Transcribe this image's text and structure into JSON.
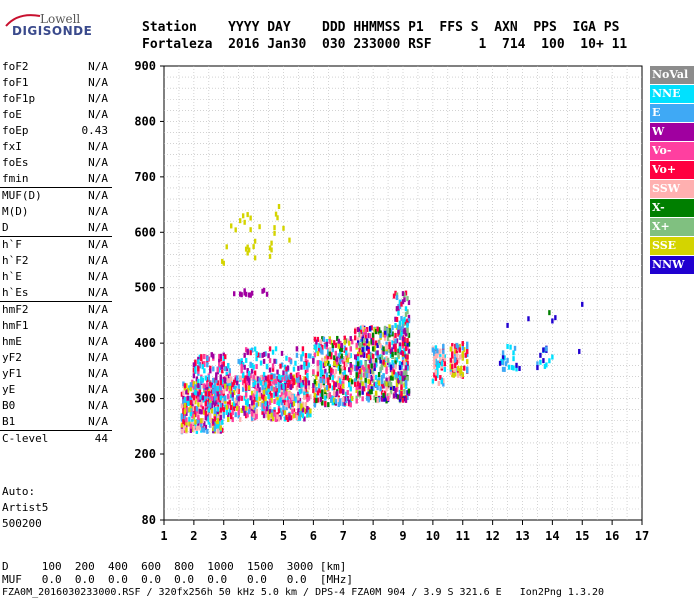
{
  "logo": {
    "line1": "Lowell",
    "line2": "DIGISONDE"
  },
  "header": {
    "line1": "Station    YYYY DAY    DDD HHMMSS P1  FFS S  AXN  PPS  IGA PS",
    "line2": "Fortaleza  2016 Jan30  030 233000 RSF      1  714  100  10+ 11"
  },
  "params": [
    {
      "name": "foF2",
      "value": "N/A"
    },
    {
      "name": "foF1",
      "value": "N/A"
    },
    {
      "name": "foF1p",
      "value": "N/A"
    },
    {
      "name": "foE",
      "value": "N/A"
    },
    {
      "name": "foEp",
      "value": "0.43"
    },
    {
      "name": "fxI",
      "value": "N/A"
    },
    {
      "name": "foEs",
      "value": "N/A"
    },
    {
      "name": "fmin",
      "value": "N/A"
    },
    {
      "name": "MUF(D)",
      "value": "N/A"
    },
    {
      "name": "M(D)",
      "value": "N/A"
    },
    {
      "name": "D",
      "value": "N/A"
    },
    {
      "name": "h`F",
      "value": "N/A"
    },
    {
      "name": "h`F2",
      "value": "N/A"
    },
    {
      "name": "h`E",
      "value": "N/A"
    },
    {
      "name": "h`Es",
      "value": "N/A"
    },
    {
      "name": "hmF2",
      "value": "N/A"
    },
    {
      "name": "hmF1",
      "value": "N/A"
    },
    {
      "name": "hmE",
      "value": "N/A"
    },
    {
      "name": "yF2",
      "value": "N/A"
    },
    {
      "name": "yF1",
      "value": "N/A"
    },
    {
      "name": "yE",
      "value": "N/A"
    },
    {
      "name": "B0",
      "value": "N/A"
    },
    {
      "name": "B1",
      "value": "N/A"
    },
    {
      "name": "C-level",
      "value": "44"
    }
  ],
  "auto": {
    "line1": "Auto:",
    "line2": "Artist5",
    "line3": "500200"
  },
  "legend": [
    {
      "label": "NoVal",
      "color": "#8c8c8c"
    },
    {
      "label": "NNE",
      "color": "#00e1ff"
    },
    {
      "label": "E",
      "color": "#3fa9f5"
    },
    {
      "label": "W",
      "color": "#a000a0"
    },
    {
      "label": "Vo-",
      "color": "#ff3fa0"
    },
    {
      "label": "Vo+",
      "color": "#ff0040"
    },
    {
      "label": "SSW",
      "color": "#ffb0b0"
    },
    {
      "label": "X-",
      "color": "#007f00"
    },
    {
      "label": "X+",
      "color": "#80c080"
    },
    {
      "label": "SSE",
      "color": "#d4d400"
    },
    {
      "label": "NNW",
      "color": "#2000d0"
    }
  ],
  "chart_data": {
    "type": "scatter",
    "x_ticks": [
      "1",
      "2",
      "3",
      "4",
      "5",
      "6",
      "7",
      "8",
      "9",
      "10",
      "11",
      "12",
      "13",
      "14",
      "15",
      "16",
      "17"
    ],
    "y_ticks": [
      "900",
      "800",
      "700",
      "600",
      "500",
      "400",
      "300",
      "200",
      "80"
    ],
    "xlim": [
      1,
      17
    ],
    "ylim": [
      80,
      900
    ],
    "grid": true,
    "legend_position": "right",
    "clusters": [
      {
        "x": [
          1.6,
          3.0
        ],
        "y": [
          240,
          330
        ],
        "series": [
          "SSW",
          "SSE",
          "Vo+",
          "E",
          "NNE",
          "Vo-",
          "W"
        ],
        "n": 380
      },
      {
        "x": [
          2.0,
          3.2
        ],
        "y": [
          300,
          380
        ],
        "series": [
          "Vo+",
          "W",
          "E",
          "Vo-",
          "NNE"
        ],
        "n": 160
      },
      {
        "x": [
          3.0,
          5.9
        ],
        "y": [
          262,
          340
        ],
        "series": [
          "SSW",
          "SSE",
          "E",
          "NNE",
          "Vo+",
          "W",
          "Vo-"
        ],
        "n": 520
      },
      {
        "x": [
          3.5,
          5.9
        ],
        "y": [
          320,
          390
        ],
        "series": [
          "Vo+",
          "W",
          "Vo-",
          "E",
          "NNE"
        ],
        "n": 140
      },
      {
        "x": [
          6.0,
          7.3
        ],
        "y": [
          288,
          410
        ],
        "series": [
          "SSE",
          "Vo+",
          "W",
          "E",
          "NNE",
          "SSW",
          "Vo-",
          "X-"
        ],
        "n": 320
      },
      {
        "x": [
          7.4,
          9.2
        ],
        "y": [
          295,
          430
        ],
        "series": [
          "SSE",
          "Vo+",
          "W",
          "E",
          "NNE",
          "SSW",
          "Vo-",
          "X+",
          "X-",
          "NNW"
        ],
        "n": 520
      },
      {
        "x": [
          8.7,
          9.2
        ],
        "y": [
          380,
          495
        ],
        "series": [
          "Vo+",
          "E",
          "NNE",
          "X+",
          "W"
        ],
        "n": 70
      },
      {
        "x": [
          10.0,
          10.4
        ],
        "y": [
          325,
          395
        ],
        "series": [
          "SSW",
          "Vo+",
          "E",
          "NNE"
        ],
        "n": 60
      },
      {
        "x": [
          10.6,
          11.2
        ],
        "y": [
          340,
          400
        ],
        "series": [
          "SSW",
          "SSE",
          "Vo+",
          "E"
        ],
        "n": 80
      },
      {
        "x": [
          12.2,
          12.9
        ],
        "y": [
          350,
          395
        ],
        "series": [
          "NNE",
          "E",
          "NNW"
        ],
        "n": 22
      },
      {
        "x": [
          13.5,
          14.0
        ],
        "y": [
          355,
          395
        ],
        "series": [
          "NNE",
          "E",
          "NNW"
        ],
        "n": 14
      },
      {
        "x": [
          2.9,
          5.3
        ],
        "y": [
          540,
          650
        ],
        "series": [
          "SSE"
        ],
        "n": 30
      },
      {
        "x": [
          2.9,
          4.5
        ],
        "y": [
          486,
          496
        ],
        "series": [
          "W"
        ],
        "n": 14
      }
    ],
    "points": [
      {
        "x": 12.5,
        "y": 432,
        "series": "NNW"
      },
      {
        "x": 13.2,
        "y": 444,
        "series": "NNW"
      },
      {
        "x": 13.9,
        "y": 455,
        "series": "X-"
      },
      {
        "x": 14.0,
        "y": 440,
        "series": "NNW"
      },
      {
        "x": 14.1,
        "y": 446,
        "series": "NNW"
      },
      {
        "x": 15.0,
        "y": 470,
        "series": "NNW"
      },
      {
        "x": 14.9,
        "y": 385,
        "series": "NNW"
      },
      {
        "x": 12.8,
        "y": 360,
        "series": "NNW"
      },
      {
        "x": 13.6,
        "y": 378,
        "series": "NNW"
      }
    ]
  },
  "footer": {
    "dist_line": "D     100  200  400  600  800  1000  1500  3000 [km]",
    "muf_line": "MUF   0.0  0.0  0.0  0.0  0.0  0.0   0.0   0.0  [MHz]",
    "info_line": "FZA0M_2016030233000.RSF / 320fx256h 50 kHz 5.0 km / DPS-4 FZA0M 904 / 3.9 S 321.6 E   Ion2Png 1.3.20"
  }
}
